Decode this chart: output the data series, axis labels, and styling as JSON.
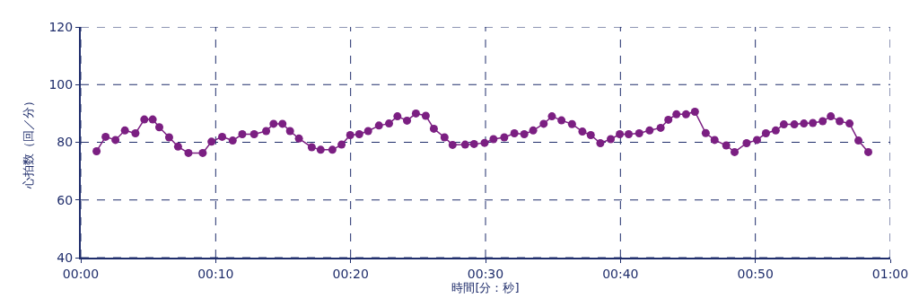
{
  "chart_data": {
    "type": "line",
    "xlabel": "時間[分：秒]",
    "ylabel": "心拍数（回／分）",
    "x": [
      1.17,
      1.84,
      2.57,
      3.27,
      4.05,
      4.71,
      5.33,
      5.82,
      6.55,
      7.21,
      7.98,
      9.04,
      9.69,
      10.48,
      11.26,
      11.97,
      12.85,
      13.74,
      14.29,
      14.95,
      15.51,
      16.17,
      17.12,
      17.78,
      18.65,
      19.33,
      19.97,
      20.64,
      21.3,
      22.1,
      22.85,
      23.47,
      24.18,
      24.84,
      25.57,
      26.17,
      26.96,
      27.56,
      28.49,
      29.15,
      29.93,
      30.59,
      31.39,
      32.14,
      32.87,
      33.53,
      34.31,
      34.92,
      35.63,
      36.41,
      37.18,
      37.8,
      38.51,
      39.28,
      39.95,
      40.61,
      41.39,
      42.16,
      42.98,
      43.55,
      44.15,
      44.86,
      45.52,
      46.32,
      46.98,
      47.84,
      48.46,
      49.35,
      50.12,
      50.78,
      51.51,
      52.11,
      52.89,
      53.6,
      54.26,
      54.99,
      55.59,
      56.25,
      56.98,
      57.64,
      58.37
    ],
    "series": [
      {
        "color": "#7b1f82",
        "values": [
          76.9,
          81.9,
          80.8,
          84.1,
          83.1,
          87.9,
          87.9,
          85.2,
          81.7,
          78.5,
          76.3,
          76.3,
          80.2,
          81.9,
          80.6,
          82.8,
          82.8,
          83.9,
          86.4,
          86.4,
          83.9,
          81.3,
          78.3,
          77.4,
          77.4,
          79.2,
          82.5,
          82.8,
          83.9,
          85.8,
          86.5,
          89.0,
          87.5,
          90.0,
          89.2,
          84.7,
          81.7,
          79.1,
          79.2,
          79.4,
          79.8,
          81.1,
          81.7,
          83.1,
          82.8,
          84.1,
          86.4,
          89.0,
          87.6,
          86.3,
          83.7,
          82.5,
          79.7,
          81.1,
          82.8,
          82.8,
          83.1,
          84.1,
          85.0,
          87.8,
          89.7,
          89.7,
          90.6,
          83.2,
          80.8,
          78.9,
          76.6,
          79.7,
          80.8,
          83.1,
          84.1,
          86.2,
          86.2,
          86.5,
          86.7,
          87.3,
          89.0,
          87.3,
          86.5,
          80.6,
          76.6
        ]
      }
    ],
    "xlim": [
      0,
      60
    ],
    "xticks": [
      {
        "value": 0,
        "label": "00:00"
      },
      {
        "value": 10,
        "label": "00:10"
      },
      {
        "value": 20,
        "label": "00:20"
      },
      {
        "value": 30,
        "label": "00:30"
      },
      {
        "value": 40,
        "label": "00:40"
      },
      {
        "value": 50,
        "label": "00:50"
      },
      {
        "value": 60,
        "label": "01:00"
      }
    ],
    "ylim": [
      40,
      120
    ],
    "yticks": [
      40,
      60,
      80,
      100,
      120
    ],
    "grid": true,
    "marker": "circle",
    "line_style": "solid"
  }
}
